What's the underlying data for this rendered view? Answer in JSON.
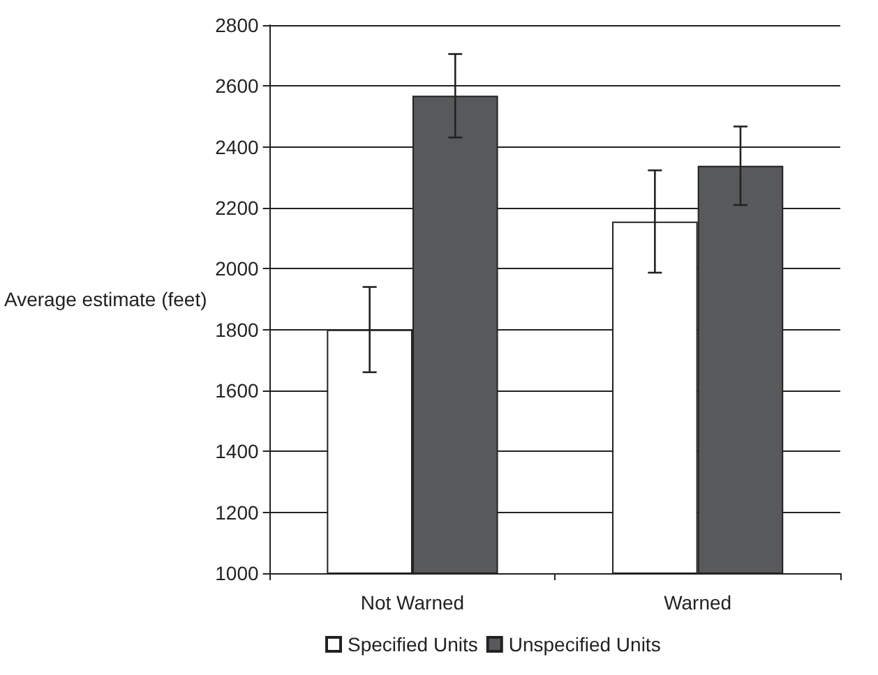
{
  "chart_data": {
    "type": "bar",
    "ylabel": "Average estimate (feet)",
    "categories": [
      "Not Warned",
      "Warned"
    ],
    "series": [
      {
        "name": "Specified Units",
        "color": "#ffffff",
        "values": [
          1800,
          2155
        ],
        "errors": [
          140,
          168
        ]
      },
      {
        "name": "Unspecified Units",
        "color": "#58595b",
        "values": [
          2568,
          2338
        ],
        "errors": [
          137,
          129
        ]
      }
    ],
    "ylim": [
      1000,
      2800
    ],
    "yticks": [
      1000,
      1200,
      1400,
      1600,
      1800,
      2000,
      2200,
      2400,
      2600,
      2800
    ],
    "grid": "y",
    "legend": "bottom"
  }
}
